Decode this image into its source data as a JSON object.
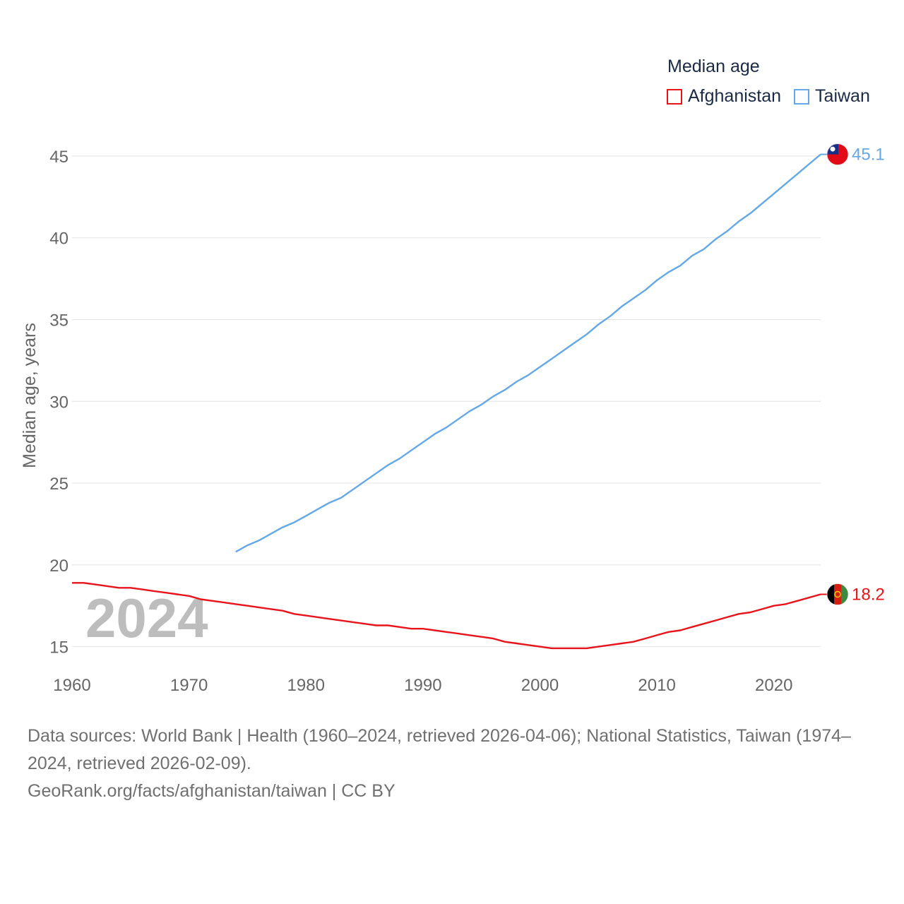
{
  "legend": {
    "title": "Median age",
    "items": [
      {
        "name": "Afghanistan",
        "color": "#e8141b"
      },
      {
        "name": "Taiwan",
        "color": "#64a8e6"
      }
    ]
  },
  "footer": {
    "sources": "Data sources: World Bank | Health (1960–2024, retrieved 2026-04-06); National Statistics, Taiwan (1974–2024, retrieved 2026-02-09).",
    "credit": "GeoRank.org/facts/afghanistan/taiwan | CC BY"
  },
  "chart_data": {
    "type": "line",
    "title": "Median age",
    "year_label": "2024",
    "xlabel": "",
    "ylabel": "Median age, years",
    "xlim": [
      1960,
      2024
    ],
    "ylim": [
      13.3,
      47.5
    ],
    "xticks": [
      1960,
      1970,
      1980,
      1990,
      2000,
      2010,
      2020
    ],
    "yticks": [
      15,
      20,
      25,
      30,
      35,
      40,
      45
    ],
    "grid": true,
    "series": [
      {
        "name": "Afghanistan",
        "color": "#e8141b",
        "end_label": "18.2",
        "flag": "afghanistan-flag",
        "x": [
          1960,
          1961,
          1962,
          1963,
          1964,
          1965,
          1966,
          1967,
          1968,
          1969,
          1970,
          1971,
          1972,
          1973,
          1974,
          1975,
          1976,
          1977,
          1978,
          1979,
          1980,
          1981,
          1982,
          1983,
          1984,
          1985,
          1986,
          1987,
          1988,
          1989,
          1990,
          1991,
          1992,
          1993,
          1994,
          1995,
          1996,
          1997,
          1998,
          1999,
          2000,
          2001,
          2002,
          2003,
          2004,
          2005,
          2006,
          2007,
          2008,
          2009,
          2010,
          2011,
          2012,
          2013,
          2014,
          2015,
          2016,
          2017,
          2018,
          2019,
          2020,
          2021,
          2022,
          2023,
          2024
        ],
        "values": [
          18.9,
          18.9,
          18.8,
          18.7,
          18.6,
          18.6,
          18.5,
          18.4,
          18.3,
          18.2,
          18.1,
          17.9,
          17.8,
          17.7,
          17.6,
          17.5,
          17.4,
          17.3,
          17.2,
          17.0,
          16.9,
          16.8,
          16.7,
          16.6,
          16.5,
          16.4,
          16.3,
          16.3,
          16.2,
          16.1,
          16.1,
          16.0,
          15.9,
          15.8,
          15.7,
          15.6,
          15.5,
          15.3,
          15.2,
          15.1,
          15.0,
          14.9,
          14.9,
          14.9,
          14.9,
          15.0,
          15.1,
          15.2,
          15.3,
          15.5,
          15.7,
          15.9,
          16.0,
          16.2,
          16.4,
          16.6,
          16.8,
          17.0,
          17.1,
          17.3,
          17.5,
          17.6,
          17.8,
          18.0,
          18.2
        ]
      },
      {
        "name": "Taiwan",
        "color": "#64a8e6",
        "end_label": "45.1",
        "flag": "taiwan-flag",
        "x": [
          1974,
          1975,
          1976,
          1977,
          1978,
          1979,
          1980,
          1981,
          1982,
          1983,
          1984,
          1985,
          1986,
          1987,
          1988,
          1989,
          1990,
          1991,
          1992,
          1993,
          1994,
          1995,
          1996,
          1997,
          1998,
          1999,
          2000,
          2001,
          2002,
          2003,
          2004,
          2005,
          2006,
          2007,
          2008,
          2009,
          2010,
          2011,
          2012,
          2013,
          2014,
          2015,
          2016,
          2017,
          2018,
          2019,
          2020,
          2021,
          2022,
          2023,
          2024
        ],
        "values": [
          20.8,
          21.2,
          21.5,
          21.9,
          22.3,
          22.6,
          23.0,
          23.4,
          23.8,
          24.1,
          24.6,
          25.1,
          25.6,
          26.1,
          26.5,
          27.0,
          27.5,
          28.0,
          28.4,
          28.9,
          29.4,
          29.8,
          30.3,
          30.7,
          31.2,
          31.6,
          32.1,
          32.6,
          33.1,
          33.6,
          34.1,
          34.7,
          35.2,
          35.8,
          36.3,
          36.8,
          37.4,
          37.9,
          38.3,
          38.9,
          39.3,
          39.9,
          40.4,
          41.0,
          41.5,
          42.1,
          42.7,
          43.3,
          43.9,
          44.5,
          45.1
        ]
      }
    ]
  }
}
